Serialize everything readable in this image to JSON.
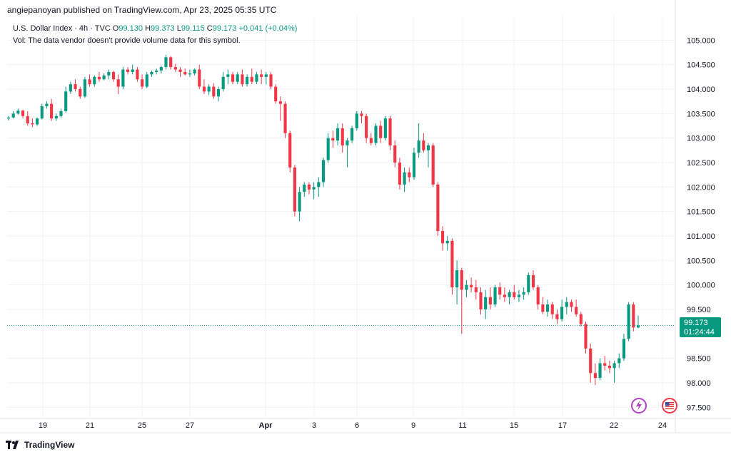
{
  "publisher": "angiepanoyan published on TradingView.com, Apr 23, 2025 05:35 UTC",
  "legend": {
    "symbol": "U.S. Dollar Index · 4h · TVC",
    "o_label": "O",
    "o_value": "99.130",
    "h_label": "H",
    "h_value": "99.373",
    "l_label": "L",
    "l_value": "99.115",
    "c_label": "C",
    "c_value": "99.173",
    "change": "+0.041 (+0.04%)",
    "vol_note": "Vol: The data vendor doesn't provide volume data for this symbol."
  },
  "price_badge": {
    "price": "99.173",
    "countdown": "01:24:44"
  },
  "brand": "TradingView",
  "icons": {
    "event_icon": "lightning-event-icon",
    "flag_icon": "us-flag-icon"
  },
  "colors": {
    "up": "#089981",
    "down": "#f23645",
    "grid": "#f0f3fa",
    "current_line": "#089981",
    "event": "#9c27b0"
  },
  "chart_data": {
    "type": "candlestick",
    "interval": "4h",
    "y_ticks": [
      "105.000",
      "104.500",
      "104.000",
      "103.500",
      "103.000",
      "102.500",
      "102.000",
      "101.500",
      "101.000",
      "100.500",
      "100.000",
      "99.500",
      "98.500",
      "98.000",
      "97.500"
    ],
    "ylim": [
      97.3,
      105.5
    ],
    "x_ticks": [
      "19",
      "21",
      "25",
      "27",
      "Apr",
      "3",
      "6",
      "9",
      "11",
      "15",
      "17",
      "22",
      "24"
    ],
    "current_price": 99.173,
    "candles": [
      [
        103.4,
        103.45,
        103.36,
        103.42
      ],
      [
        103.42,
        103.55,
        103.4,
        103.5
      ],
      [
        103.5,
        103.6,
        103.48,
        103.56
      ],
      [
        103.56,
        103.58,
        103.4,
        103.45
      ],
      [
        103.45,
        103.55,
        103.25,
        103.3
      ],
      [
        103.3,
        103.4,
        103.22,
        103.28
      ],
      [
        103.28,
        103.42,
        103.25,
        103.4
      ],
      [
        103.4,
        103.7,
        103.38,
        103.65
      ],
      [
        103.65,
        103.75,
        103.6,
        103.7
      ],
      [
        103.7,
        103.8,
        103.35,
        103.4
      ],
      [
        103.4,
        103.5,
        103.35,
        103.45
      ],
      [
        103.45,
        103.6,
        103.42,
        103.55
      ],
      [
        103.55,
        104.05,
        103.52,
        103.95
      ],
      [
        103.95,
        104.15,
        103.9,
        104.1
      ],
      [
        104.1,
        104.2,
        103.95,
        104.0
      ],
      [
        104.0,
        104.05,
        103.8,
        103.85
      ],
      [
        103.85,
        104.25,
        103.82,
        104.2
      ],
      [
        104.2,
        104.3,
        104.05,
        104.1
      ],
      [
        104.1,
        104.28,
        104.05,
        104.25
      ],
      [
        104.25,
        104.35,
        104.15,
        104.2
      ],
      [
        104.2,
        104.32,
        104.18,
        104.28
      ],
      [
        104.28,
        104.4,
        104.2,
        104.35
      ],
      [
        104.35,
        104.38,
        104.15,
        104.2
      ],
      [
        104.2,
        104.3,
        103.9,
        104.05
      ],
      [
        104.05,
        104.45,
        104.0,
        104.4
      ],
      [
        104.4,
        104.45,
        104.3,
        104.35
      ],
      [
        104.35,
        104.5,
        104.3,
        104.4
      ],
      [
        104.4,
        104.45,
        104.15,
        104.2
      ],
      [
        104.2,
        104.3,
        104.0,
        104.05
      ],
      [
        104.05,
        104.35,
        104.02,
        104.3
      ],
      [
        104.3,
        104.38,
        104.25,
        104.35
      ],
      [
        104.35,
        104.42,
        104.3,
        104.38
      ],
      [
        104.38,
        104.48,
        104.32,
        104.45
      ],
      [
        104.45,
        104.7,
        104.4,
        104.65
      ],
      [
        104.65,
        104.68,
        104.4,
        104.45
      ],
      [
        104.45,
        104.52,
        104.35,
        104.4
      ],
      [
        104.4,
        104.45,
        104.25,
        104.35
      ],
      [
        104.35,
        104.42,
        104.28,
        104.3
      ],
      [
        104.3,
        104.4,
        104.25,
        104.32
      ],
      [
        104.32,
        104.42,
        104.28,
        104.4
      ],
      [
        104.4,
        104.5,
        104.0,
        104.05
      ],
      [
        104.05,
        104.2,
        103.9,
        103.95
      ],
      [
        103.95,
        104.1,
        103.88,
        104.05
      ],
      [
        104.05,
        104.12,
        103.8,
        103.85
      ],
      [
        103.85,
        104.05,
        103.75,
        104.0
      ],
      [
        104.0,
        104.35,
        103.95,
        104.25
      ],
      [
        104.25,
        104.4,
        104.1,
        104.3
      ],
      [
        104.3,
        104.35,
        104.1,
        104.15
      ],
      [
        104.15,
        104.35,
        104.1,
        104.3
      ],
      [
        104.3,
        104.4,
        104.05,
        104.1
      ],
      [
        104.1,
        104.3,
        104.05,
        104.25
      ],
      [
        104.25,
        104.42,
        104.1,
        104.15
      ],
      [
        104.15,
        104.35,
        104.1,
        104.3
      ],
      [
        104.3,
        104.4,
        104.1,
        104.25
      ],
      [
        104.25,
        104.35,
        104.1,
        104.3
      ],
      [
        104.3,
        104.35,
        104.0,
        104.05
      ],
      [
        104.05,
        104.1,
        103.7,
        103.75
      ],
      [
        103.75,
        103.85,
        103.35,
        103.7
      ],
      [
        103.7,
        103.75,
        103.0,
        103.1
      ],
      [
        103.1,
        103.15,
        102.3,
        102.4
      ],
      [
        102.4,
        102.45,
        101.4,
        101.5
      ],
      [
        101.5,
        102.0,
        101.3,
        101.9
      ],
      [
        101.9,
        102.1,
        101.8,
        102.05
      ],
      [
        102.05,
        102.1,
        101.85,
        101.95
      ],
      [
        101.95,
        102.1,
        101.75,
        102.0
      ],
      [
        102.0,
        102.2,
        101.8,
        102.1
      ],
      [
        102.1,
        102.6,
        102.0,
        102.55
      ],
      [
        102.55,
        103.1,
        102.5,
        103.0
      ],
      [
        103.0,
        103.15,
        102.8,
        102.95
      ],
      [
        102.95,
        103.3,
        102.85,
        103.2
      ],
      [
        103.2,
        103.3,
        102.7,
        102.85
      ],
      [
        102.85,
        103.0,
        102.4,
        102.95
      ],
      [
        102.95,
        103.25,
        102.9,
        103.2
      ],
      [
        103.2,
        103.55,
        103.15,
        103.5
      ],
      [
        103.5,
        103.55,
        103.3,
        103.45
      ],
      [
        103.45,
        103.5,
        102.9,
        103.0
      ],
      [
        103.0,
        103.1,
        102.85,
        102.9
      ],
      [
        102.9,
        103.3,
        102.85,
        103.25
      ],
      [
        103.25,
        103.35,
        102.9,
        103.0
      ],
      [
        103.0,
        103.45,
        102.95,
        103.4
      ],
      [
        103.4,
        103.45,
        102.75,
        102.85
      ],
      [
        102.85,
        102.95,
        102.4,
        102.5
      ],
      [
        102.5,
        102.6,
        101.95,
        102.05
      ],
      [
        102.05,
        102.4,
        101.9,
        102.3
      ],
      [
        102.3,
        102.4,
        102.1,
        102.2
      ],
      [
        102.2,
        102.8,
        102.15,
        102.7
      ],
      [
        102.7,
        103.3,
        102.6,
        102.95
      ],
      [
        102.95,
        103.1,
        102.7,
        102.75
      ],
      [
        102.75,
        102.9,
        102.4,
        102.85
      ],
      [
        102.85,
        102.9,
        102.0,
        102.05
      ],
      [
        102.05,
        102.1,
        101.0,
        101.1
      ],
      [
        101.1,
        101.2,
        100.7,
        100.85
      ],
      [
        100.85,
        101.0,
        100.7,
        100.9
      ],
      [
        100.9,
        100.95,
        99.8,
        99.95
      ],
      [
        99.95,
        100.5,
        99.6,
        100.3
      ],
      [
        100.3,
        100.35,
        99.0,
        99.9
      ],
      [
        99.9,
        100.1,
        99.75,
        100.0
      ],
      [
        100.0,
        100.15,
        99.85,
        99.95
      ],
      [
        99.95,
        100.1,
        99.7,
        99.85
      ],
      [
        99.85,
        99.95,
        99.4,
        99.5
      ],
      [
        99.5,
        99.9,
        99.3,
        99.75
      ],
      [
        99.75,
        99.95,
        99.5,
        99.6
      ],
      [
        99.6,
        100.0,
        99.55,
        99.95
      ],
      [
        99.95,
        100.05,
        99.7,
        99.8
      ],
      [
        99.8,
        99.95,
        99.65,
        99.75
      ],
      [
        99.75,
        99.9,
        99.6,
        99.85
      ],
      [
        99.85,
        100.0,
        99.7,
        99.75
      ],
      [
        99.75,
        99.9,
        99.65,
        99.8
      ],
      [
        99.8,
        99.95,
        99.7,
        99.85
      ],
      [
        99.85,
        100.25,
        99.8,
        100.2
      ],
      [
        100.2,
        100.3,
        99.9,
        99.95
      ],
      [
        99.95,
        100.0,
        99.5,
        99.6
      ],
      [
        99.6,
        99.75,
        99.4,
        99.45
      ],
      [
        99.45,
        99.7,
        99.35,
        99.6
      ],
      [
        99.6,
        99.65,
        99.3,
        99.4
      ],
      [
        99.4,
        99.5,
        99.2,
        99.3
      ],
      [
        99.3,
        99.7,
        99.25,
        99.55
      ],
      [
        99.55,
        99.75,
        99.4,
        99.65
      ],
      [
        99.65,
        99.7,
        99.45,
        99.55
      ],
      [
        99.55,
        99.7,
        99.35,
        99.4
      ],
      [
        99.4,
        99.45,
        99.15,
        99.2
      ],
      [
        99.2,
        99.25,
        98.6,
        98.7
      ],
      [
        98.7,
        98.8,
        98.0,
        98.2
      ],
      [
        98.2,
        98.4,
        97.95,
        98.1
      ],
      [
        98.1,
        98.5,
        98.05,
        98.4
      ],
      [
        98.4,
        98.55,
        98.25,
        98.35
      ],
      [
        98.35,
        98.45,
        98.2,
        98.3
      ],
      [
        98.3,
        98.45,
        98.0,
        98.4
      ],
      [
        98.4,
        98.6,
        98.3,
        98.5
      ],
      [
        98.5,
        99.0,
        98.45,
        98.9
      ],
      [
        98.9,
        99.65,
        98.85,
        99.6
      ],
      [
        99.6,
        99.65,
        99.05,
        99.13
      ],
      [
        99.13,
        99.373,
        99.115,
        99.173
      ]
    ]
  }
}
